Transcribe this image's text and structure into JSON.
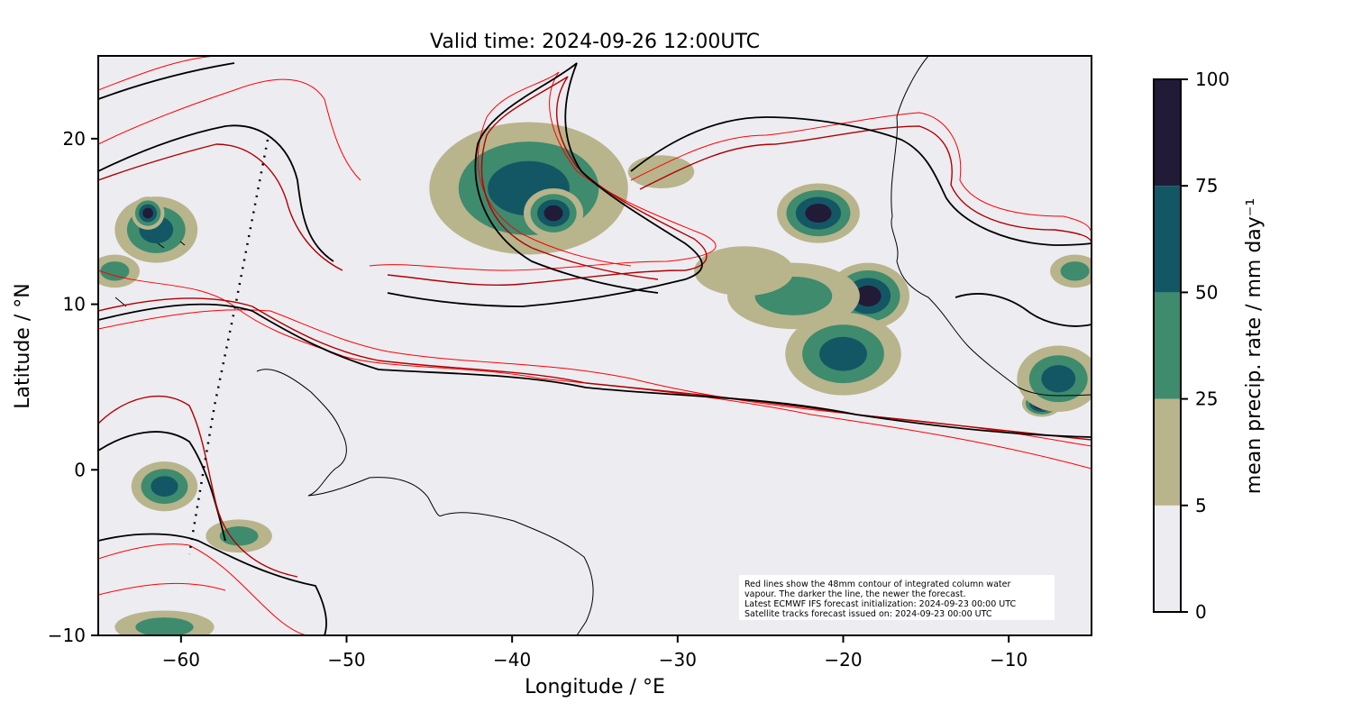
{
  "title": "Valid time: 2024-09-26 12:00UTC",
  "xlabel": "Longitude / °E",
  "ylabel": "Latitude / °N",
  "colorbar_label": "mean precip. rate / mm day⁻¹",
  "x_ticks": [
    "−60",
    "−50",
    "−40",
    "−30",
    "−20",
    "−10"
  ],
  "y_ticks": [
    "20",
    "10",
    "0",
    "−10"
  ],
  "colorbar_ticks": [
    "100",
    "75",
    "50",
    "25",
    "5",
    "0"
  ],
  "note_lines": [
    "Red lines show the 48mm contour of integrated column water",
    "vapour. The darker the line, the newer the forecast.",
    "Latest ECMWF IFS forecast initialization: 2024-09-23 00:00 UTC",
    "Satellite tracks forecast issued on: 2024-09-23 00:00 UTC"
  ],
  "colors": {
    "background": "#edecf1",
    "bin_0_5": "#edecf1",
    "bin_5_25": "#b8b48c",
    "bin_25_50": "#3e8b6e",
    "bin_50_75": "#135765",
    "bin_75_100": "#211b38",
    "contour_oldest": "#ff0000",
    "contour_mid": "#b00000",
    "contour_newest": "#000000",
    "coastline": "#000000"
  },
  "chart_data": {
    "type": "heatmap",
    "title": "Valid time: 2024-09-26 12:00UTC",
    "xlabel": "Longitude / °E",
    "ylabel": "Latitude / °N",
    "xlim": [
      -65,
      -5
    ],
    "ylim": [
      -10,
      25
    ],
    "x_ticks": [
      -60,
      -50,
      -40,
      -30,
      -20,
      -10
    ],
    "y_ticks": [
      20,
      10,
      0,
      -10
    ],
    "colorbar": {
      "label": "mean precip. rate / mm day⁻¹",
      "bounds": [
        0,
        5,
        25,
        50,
        75,
        100
      ]
    },
    "precip_cells": [
      {
        "lon": -39,
        "lat": 17,
        "rx": 6,
        "ry": 4,
        "level": 3
      },
      {
        "lon": -37.5,
        "lat": 15.5,
        "rx": 1.8,
        "ry": 1.5,
        "level": 4
      },
      {
        "lon": -61.5,
        "lat": 14.5,
        "rx": 2.5,
        "ry": 2,
        "level": 3
      },
      {
        "lon": -62,
        "lat": 15.5,
        "rx": 1,
        "ry": 1,
        "level": 4
      },
      {
        "lon": -21.5,
        "lat": 15.5,
        "rx": 2.5,
        "ry": 1.8,
        "level": 4
      },
      {
        "lon": -18.5,
        "lat": 10.5,
        "rx": 2.5,
        "ry": 2,
        "level": 4
      },
      {
        "lon": -20,
        "lat": 7,
        "rx": 3.5,
        "ry": 2.5,
        "level": 3
      },
      {
        "lon": -23,
        "lat": 10.5,
        "rx": 4,
        "ry": 2,
        "level": 2
      },
      {
        "lon": -26,
        "lat": 12,
        "rx": 3,
        "ry": 1.5,
        "level": 1
      },
      {
        "lon": -8,
        "lat": 4,
        "rx": 1.2,
        "ry": 0.8,
        "level": 5
      },
      {
        "lon": -7,
        "lat": 5.5,
        "rx": 2.5,
        "ry": 2,
        "level": 3
      },
      {
        "lon": -61,
        "lat": -1,
        "rx": 2,
        "ry": 1.5,
        "level": 3
      },
      {
        "lon": -56.5,
        "lat": -4,
        "rx": 2,
        "ry": 1,
        "level": 2
      },
      {
        "lon": -64,
        "lat": 12,
        "rx": 1.5,
        "ry": 1,
        "level": 2
      },
      {
        "lon": -61,
        "lat": -9.5,
        "rx": 3,
        "ry": 1,
        "level": 2
      },
      {
        "lon": -31,
        "lat": 18,
        "rx": 2,
        "ry": 1,
        "level": 1
      },
      {
        "lon": -6,
        "lat": 12,
        "rx": 1.5,
        "ry": 1,
        "level": 2
      }
    ]
  }
}
